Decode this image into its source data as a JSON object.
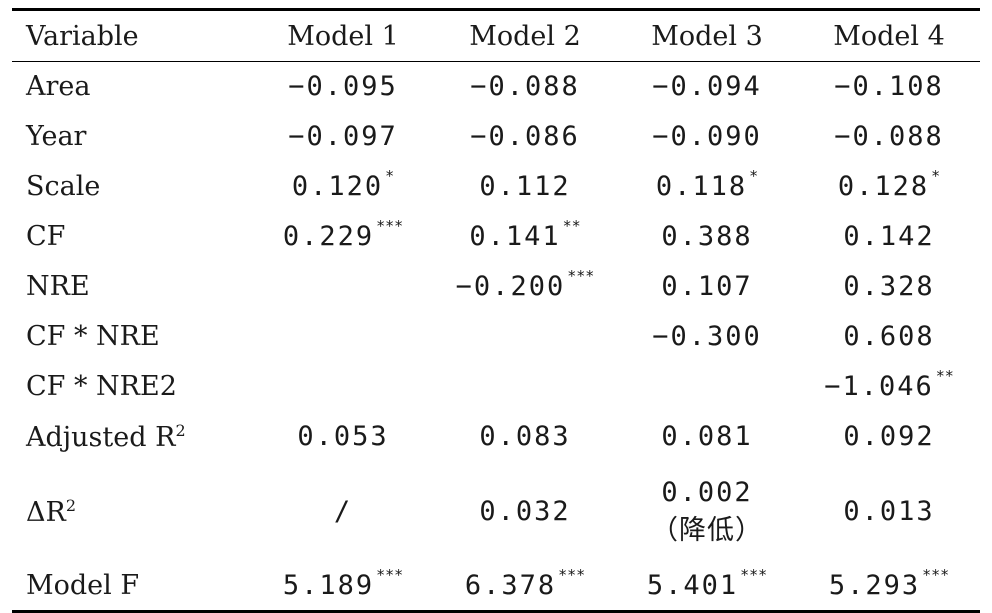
{
  "table": {
    "headers": [
      "Variable",
      "Model 1",
      "Model 2",
      "Model 3",
      "Model 4"
    ],
    "rows": [
      {
        "label": "Area",
        "cells": [
          {
            "v": "−0.095",
            "s": ""
          },
          {
            "v": "−0.088",
            "s": ""
          },
          {
            "v": "−0.094",
            "s": ""
          },
          {
            "v": "−0.108",
            "s": ""
          }
        ]
      },
      {
        "label": "Year",
        "cells": [
          {
            "v": "−0.097",
            "s": ""
          },
          {
            "v": "−0.086",
            "s": ""
          },
          {
            "v": "−0.090",
            "s": ""
          },
          {
            "v": "−0.088",
            "s": ""
          }
        ]
      },
      {
        "label": "Scale",
        "cells": [
          {
            "v": "0.120",
            "s": "*"
          },
          {
            "v": "0.112",
            "s": ""
          },
          {
            "v": "0.118",
            "s": "*"
          },
          {
            "v": "0.128",
            "s": "*"
          }
        ]
      },
      {
        "label": "CF",
        "cells": [
          {
            "v": "0.229",
            "s": "***"
          },
          {
            "v": "0.141",
            "s": "**"
          },
          {
            "v": "0.388",
            "s": ""
          },
          {
            "v": "0.142",
            "s": ""
          }
        ]
      },
      {
        "label": "NRE",
        "cells": [
          {
            "v": "",
            "s": ""
          },
          {
            "v": "−0.200",
            "s": "***"
          },
          {
            "v": "0.107",
            "s": ""
          },
          {
            "v": "0.328",
            "s": ""
          }
        ]
      },
      {
        "label": "CF * NRE",
        "cells": [
          {
            "v": "",
            "s": ""
          },
          {
            "v": "",
            "s": ""
          },
          {
            "v": "−0.300",
            "s": ""
          },
          {
            "v": "0.608",
            "s": ""
          }
        ]
      },
      {
        "label": "CF * NRE2",
        "cells": [
          {
            "v": "",
            "s": ""
          },
          {
            "v": "",
            "s": ""
          },
          {
            "v": "",
            "s": ""
          },
          {
            "v": "−1.046",
            "s": "**"
          }
        ]
      },
      {
        "label": "Adjusted R",
        "label_sup": "2",
        "cells": [
          {
            "v": "0.053",
            "s": ""
          },
          {
            "v": "0.083",
            "s": ""
          },
          {
            "v": "0.081",
            "s": ""
          },
          {
            "v": "0.092",
            "s": ""
          }
        ]
      },
      {
        "label": "ΔR",
        "label_sup": "2",
        "tall": true,
        "cells": [
          {
            "v": "/",
            "s": ""
          },
          {
            "v": "0.032",
            "s": ""
          },
          {
            "v": "0.002",
            "s": "",
            "note": "（降低）"
          },
          {
            "v": "0.013",
            "s": ""
          }
        ]
      },
      {
        "label": "Model F",
        "last": true,
        "cells": [
          {
            "v": "5.189",
            "s": "***"
          },
          {
            "v": "6.378",
            "s": "***"
          },
          {
            "v": "5.401",
            "s": "***"
          },
          {
            "v": "5.293",
            "s": "***"
          }
        ]
      }
    ]
  }
}
